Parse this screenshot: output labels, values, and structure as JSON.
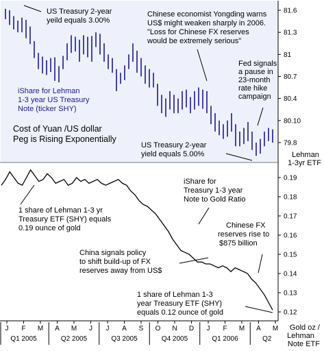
{
  "colors": {
    "background": "#ffffff",
    "top_panel_bg": "#eef1fb",
    "bar_color": "#1a1a8a",
    "line_color": "#000000",
    "blue_text": "#1a1a8a"
  },
  "chart_data": [
    {
      "type": "bar",
      "subtype": "hi-lo",
      "title": "",
      "ylabel": "Lehman 1-3yr ETF",
      "y_ticks": [
        "81.6",
        "81.3",
        "81",
        "80.7",
        "80.4",
        "80.10",
        "79.8"
      ],
      "ylim": [
        79.6,
        81.75
      ],
      "grid": false,
      "annotations": [
        {
          "id": "t2yr_3",
          "text": [
            "US Treasury 2-year",
            "yeild equals 3.00%"
          ]
        },
        {
          "id": "yongding",
          "text": [
            "Chinese economist Yongding warns",
            "US$ might weaken sharply in 2006.",
            "\"Loss for Chinese FX reserves",
            "would be extremely serious\""
          ]
        },
        {
          "id": "ishare",
          "text": [
            "iShare for Lehman",
            "1-3 year US Treasury",
            "Note (ticker SHY)"
          ]
        },
        {
          "id": "fed",
          "text": [
            "Fed signals",
            "a pause in",
            "23-month",
            "rate hike",
            "campaign"
          ]
        },
        {
          "id": "yuan",
          "text": [
            "Cost of Yuan /US dollar",
            "Peg is Rising Exponentially"
          ]
        },
        {
          "id": "t2yr_5",
          "text": [
            "US Treasury 2-year",
            "yield equals 5.00%"
          ]
        }
      ],
      "series": [
        {
          "points": [
            [
              81.62,
              81.48
            ],
            [
              81.6,
              81.4
            ],
            [
              81.52,
              81.34
            ],
            [
              81.46,
              81.3
            ],
            [
              81.5,
              81.3
            ],
            [
              81.47,
              81.22
            ],
            [
              81.38,
              81.14
            ],
            [
              81.18,
              80.95
            ],
            [
              81.02,
              80.8
            ],
            [
              80.97,
              80.74
            ],
            [
              80.92,
              80.72
            ],
            [
              80.95,
              80.76
            ],
            [
              80.96,
              80.64
            ],
            [
              80.84,
              80.62
            ],
            [
              80.98,
              80.8
            ],
            [
              81.15,
              80.92
            ],
            [
              81.26,
              81.02
            ],
            [
              81.24,
              81.04
            ],
            [
              81.2,
              80.9
            ],
            [
              81.26,
              81.0
            ],
            [
              81.24,
              80.96
            ],
            [
              81.25,
              80.9
            ],
            [
              81.3,
              81.1
            ],
            [
              81.28,
              81.0
            ],
            [
              81.15,
              80.9
            ],
            [
              81.0,
              80.8
            ],
            [
              80.95,
              80.75
            ],
            [
              80.8,
              80.5
            ],
            [
              80.75,
              80.6
            ],
            [
              80.85,
              80.65
            ],
            [
              81.0,
              80.8
            ],
            [
              81.15,
              80.9
            ],
            [
              81.05,
              80.75
            ],
            [
              80.95,
              80.7
            ],
            [
              80.85,
              80.6
            ],
            [
              80.8,
              80.55
            ],
            [
              80.75,
              80.55
            ],
            [
              80.6,
              80.3
            ],
            [
              80.45,
              80.2
            ],
            [
              80.4,
              80.15
            ],
            [
              80.5,
              80.25
            ],
            [
              80.45,
              80.2
            ],
            [
              80.4,
              80.2
            ],
            [
              80.5,
              80.25
            ],
            [
              80.52,
              80.28
            ],
            [
              80.42,
              80.2
            ],
            [
              80.5,
              80.25
            ],
            [
              80.55,
              80.3
            ],
            [
              80.52,
              80.26
            ],
            [
              80.5,
              80.2
            ],
            [
              80.3,
              80.05
            ],
            [
              80.2,
              79.95
            ],
            [
              80.1,
              79.9
            ],
            [
              80.05,
              79.85
            ],
            [
              80.1,
              79.88
            ],
            [
              80.2,
              79.95
            ],
            [
              80.05,
              79.75
            ],
            [
              79.95,
              79.75
            ],
            [
              80.0,
              79.78
            ],
            [
              80.08,
              79.82
            ],
            [
              79.95,
              79.7
            ],
            [
              79.8,
              79.62
            ],
            [
              79.85,
              79.65
            ],
            [
              79.95,
              79.75
            ],
            [
              80.0,
              79.82
            ],
            [
              79.98,
              79.8
            ]
          ]
        }
      ]
    },
    {
      "type": "line",
      "title": "",
      "ylabel": "Gold oz / Lehman Note ETF",
      "y_ticks": [
        "0.19",
        "0.18",
        "0.17",
        "0.16",
        "0.15",
        "0.14",
        "0.13",
        "0.12"
      ],
      "ylim": [
        0.1155,
        0.1965
      ],
      "grid": false,
      "annotations": [
        {
          "id": "ishare_gold",
          "text": [
            "iShare for",
            "Treasury 1-3 year",
            "Note to Gold Ratio"
          ]
        },
        {
          "id": "one019",
          "text": [
            "1 share of Lehman 1-3 yr",
            "Treasury ETF (SHY) equals",
            "0.19 ounce of gold"
          ]
        },
        {
          "id": "fx875",
          "text": [
            "Chinese FX",
            "reserves rise to",
            "$875 billion"
          ]
        },
        {
          "id": "china_policy",
          "text": [
            "China signals policy",
            "to shift build-up of FX",
            "reserves away from US$"
          ]
        },
        {
          "id": "one012",
          "text": [
            "1 share of Lehman 1-3",
            "year Treasury ETF (SHY)",
            "equals 0.12 ounce of gold"
          ]
        }
      ],
      "series": [
        {
          "x": [
            0,
            1,
            2,
            3,
            4,
            5,
            6,
            7,
            8,
            9,
            10,
            11,
            12,
            13,
            14,
            15,
            16,
            17,
            18,
            19,
            20,
            21,
            22,
            23,
            24,
            25,
            26,
            27,
            28,
            29,
            30,
            31,
            32,
            33,
            34,
            35,
            36,
            37,
            38,
            39,
            40,
            41,
            42,
            43,
            44,
            45,
            46,
            47,
            48,
            49,
            50,
            51,
            52,
            53,
            54,
            55,
            56,
            57,
            58,
            59,
            60,
            61,
            62,
            63,
            64,
            65
          ],
          "values": [
            0.186,
            0.189,
            0.193,
            0.19,
            0.187,
            0.186,
            0.19,
            0.194,
            0.191,
            0.188,
            0.189,
            0.192,
            0.19,
            0.187,
            0.188,
            0.189,
            0.186,
            0.187,
            0.19,
            0.188,
            0.189,
            0.187,
            0.188,
            0.189,
            0.187,
            0.186,
            0.187,
            0.188,
            0.189,
            0.187,
            0.186,
            0.183,
            0.181,
            0.178,
            0.176,
            0.175,
            0.173,
            0.171,
            0.168,
            0.165,
            0.162,
            0.158,
            0.155,
            0.152,
            0.151,
            0.15,
            0.148,
            0.146,
            0.146,
            0.145,
            0.145,
            0.144,
            0.143,
            0.144,
            0.143,
            0.141,
            0.143,
            0.142,
            0.141,
            0.14,
            0.137,
            0.135,
            0.132,
            0.129,
            0.125,
            0.121
          ]
        }
      ]
    }
  ],
  "x_axis": {
    "months": [
      "J",
      "F",
      "M",
      "A",
      "M",
      "J",
      "J",
      "A",
      "S",
      "O",
      "N",
      "D",
      "J",
      "F",
      "M",
      "A",
      "M"
    ],
    "quarters": [
      "Q1 2005",
      "Q2 2005",
      "Q3 2005",
      "Q4 2005",
      "Q1 2006",
      "Q2"
    ]
  }
}
